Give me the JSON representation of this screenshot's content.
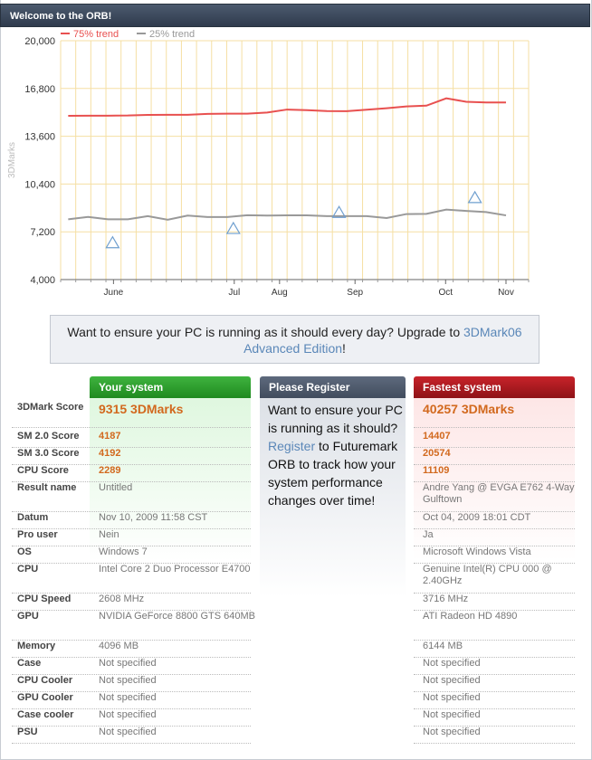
{
  "window": {
    "title": "Welcome to the ORB!"
  },
  "chart_data": {
    "type": "line",
    "ylabel": "3DMarks",
    "ylim": [
      4000,
      20000
    ],
    "yticks": [
      "4,000",
      "7,200",
      "10,400",
      "13,600",
      "16,800",
      "20,000"
    ],
    "months": [
      "June",
      "Jul",
      "Aug",
      "Sep",
      "Oct",
      "Nov"
    ],
    "grid": true,
    "legend_position": "top-left",
    "series": [
      {
        "name": "75% trend",
        "color": "#e8504f",
        "values": [
          14970,
          14980,
          14980,
          14990,
          15030,
          15040,
          15040,
          15100,
          15110,
          15110,
          15190,
          15390,
          15350,
          15290,
          15280,
          15380,
          15480,
          15600,
          15650,
          16140,
          15910,
          15860,
          15860
        ]
      },
      {
        "name": "25% trend",
        "color": "#999999",
        "values": [
          8040,
          8200,
          8040,
          8040,
          8250,
          8010,
          8290,
          8190,
          8190,
          8310,
          8290,
          8300,
          8300,
          8250,
          8250,
          8250,
          8120,
          8390,
          8400,
          8690,
          8600,
          8520,
          8300
        ]
      }
    ],
    "markers": [
      {
        "x": 3,
        "y": 6440
      },
      {
        "x": 11,
        "y": 7390
      },
      {
        "x": 18,
        "y": 8470
      },
      {
        "x": 27,
        "y": 9460
      }
    ]
  },
  "promo": {
    "text_before": "Want to ensure your PC is running as it should every day? Upgrade to ",
    "link_1": "3DMark06",
    "link_2": "Advanced Edition",
    "text_after": "!"
  },
  "columns": {
    "your_system": "Your system",
    "please_register": "Please Register",
    "fastest_system": "Fastest system"
  },
  "register": {
    "text_1": "Want to ensure your PC is running as it should?",
    "link": "Register",
    "text_2": "to Futuremark ORB to track how your system performance changes over time!"
  },
  "rows": [
    {
      "label": "3DMark Score",
      "yours": "9315 3DMarks",
      "fastest": "40257 3DMarks"
    },
    {
      "label": "SM 2.0 Score",
      "yours": "4187",
      "fastest": "14407"
    },
    {
      "label": "SM 3.0 Score",
      "yours": "4192",
      "fastest": "20574"
    },
    {
      "label": "CPU Score",
      "yours": "2289",
      "fastest": "11109"
    },
    {
      "label": "Result name",
      "yours": "Untitled",
      "fastest": "Andre Yang @ EVGA E762 4-Way Gulftown"
    },
    {
      "label": "Datum",
      "yours": "Nov 10, 2009 11:58 CST",
      "fastest": "Oct 04, 2009 18:01 CDT"
    },
    {
      "label": "Pro user",
      "yours": "Nein",
      "fastest": "Ja"
    },
    {
      "label": "OS",
      "yours": "Windows 7",
      "fastest": "Microsoft Windows Vista"
    },
    {
      "label": "CPU",
      "yours": "Intel Core 2 Duo Processor E4700",
      "fastest": "Genuine Intel(R) CPU 000 @ 2.40GHz"
    },
    {
      "label": "CPU Speed",
      "yours": "2608 MHz",
      "fastest": "3716 MHz"
    },
    {
      "label": "GPU",
      "yours": "NVIDIA GeForce 8800 GTS 640MB",
      "fastest": "ATI Radeon HD 4890"
    },
    {
      "label": "Memory",
      "yours": "4096 MB",
      "fastest": "6144 MB"
    },
    {
      "label": "Case",
      "yours": "Not specified",
      "fastest": "Not specified"
    },
    {
      "label": "CPU Cooler",
      "yours": "Not specified",
      "fastest": "Not specified"
    },
    {
      "label": "GPU Cooler",
      "yours": "Not specified",
      "fastest": "Not specified"
    },
    {
      "label": "Case cooler",
      "yours": "Not specified",
      "fastest": "Not specified"
    },
    {
      "label": "PSU",
      "yours": "Not specified",
      "fastest": "Not specified"
    }
  ]
}
